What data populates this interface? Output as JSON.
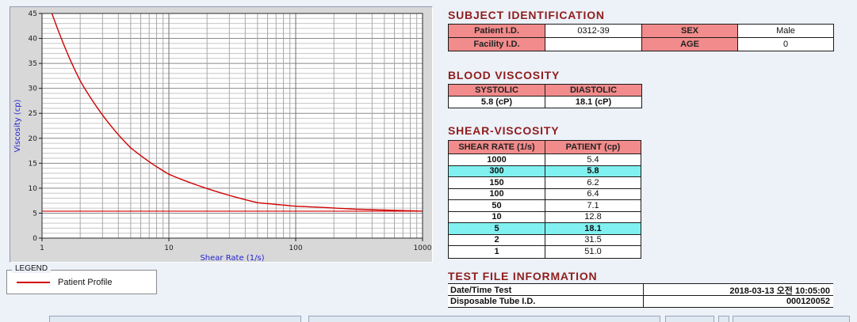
{
  "colors": {
    "page_bg": "#edf1f8",
    "heading": "#8f1d1d",
    "header_cell": "#f28b8b",
    "highlight": "#80f0f0",
    "line": "#d10000",
    "axis_label": "#1f1fd0"
  },
  "chart": {
    "legend_title": "LEGEND",
    "legend_items": [
      {
        "label": "Patient Profile",
        "color": "#d10000"
      }
    ],
    "chart_data": {
      "type": "line",
      "x_scale": "log",
      "x": [
        1,
        2,
        5,
        10,
        50,
        100,
        150,
        300,
        1000
      ],
      "series": [
        {
          "name": "Patient Profile",
          "values": [
            51.0,
            31.5,
            18.1,
            12.8,
            7.1,
            6.4,
            6.2,
            5.8,
            5.4
          ],
          "color": "#d10000"
        }
      ],
      "reference_line": 5.4,
      "title": "",
      "xlabel": "Shear Rate (1/s)",
      "ylabel": "Viscosity (cp)",
      "xlim": [
        1,
        1000
      ],
      "ylim": [
        0,
        45
      ],
      "x_ticks": [
        1,
        10,
        100,
        1000
      ],
      "y_ticks": [
        0,
        5,
        10,
        15,
        20,
        25,
        30,
        35,
        40,
        45
      ],
      "grid": true,
      "legend_position": "bottom-left"
    }
  },
  "subject": {
    "heading": "SUBJECT IDENTIFICATION",
    "rows": [
      {
        "label1": "Patient I.D.",
        "value1": "0312-39",
        "label2": "SEX",
        "value2": "Male"
      },
      {
        "label1": "Facility I.D.",
        "value1": "",
        "label2": "AGE",
        "value2": "0"
      }
    ]
  },
  "blood_viscosity": {
    "heading": "BLOOD VISCOSITY",
    "headers": [
      "SYSTOLIC",
      "DIASTOLIC"
    ],
    "values": [
      "5.8 (cP)",
      "18.1 (cP)"
    ]
  },
  "shear_viscosity": {
    "heading": "SHEAR-VISCOSITY",
    "headers": [
      "SHEAR RATE (1/s)",
      "PATIENT (cp)"
    ],
    "rows": [
      {
        "rate": "1000",
        "value": "5.4",
        "highlight": false
      },
      {
        "rate": "300",
        "value": "5.8",
        "highlight": true
      },
      {
        "rate": "150",
        "value": "6.2",
        "highlight": false
      },
      {
        "rate": "100",
        "value": "6.4",
        "highlight": false
      },
      {
        "rate": "50",
        "value": "7.1",
        "highlight": false
      },
      {
        "rate": "10",
        "value": "12.8",
        "highlight": false
      },
      {
        "rate": "5",
        "value": "18.1",
        "highlight": true
      },
      {
        "rate": "2",
        "value": "31.5",
        "highlight": false
      },
      {
        "rate": "1",
        "value": "51.0",
        "highlight": false
      }
    ]
  },
  "test_file": {
    "heading": "TEST FILE INFORMATION",
    "rows": [
      {
        "label": "Date/Time Test",
        "value": "2018-03-13  오전 10:05:00"
      },
      {
        "label": "Disposable Tube I.D.",
        "value": "000120052"
      }
    ]
  }
}
